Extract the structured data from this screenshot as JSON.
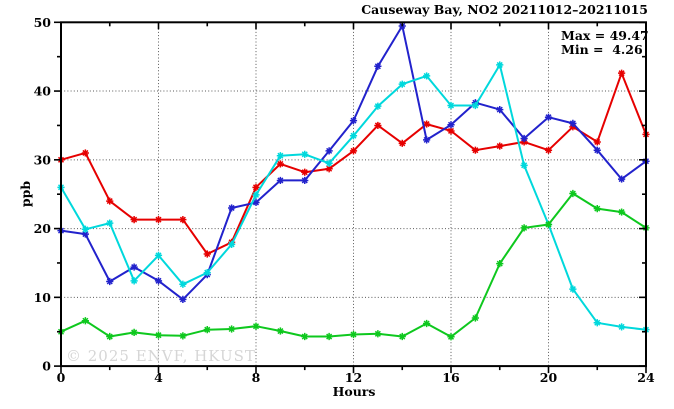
{
  "chart_data": {
    "type": "line",
    "title": "Causeway Bay, NO2 20211012–20211015",
    "xlabel": "Hours",
    "ylabel": "ppb",
    "xlim": [
      0,
      24
    ],
    "ylim": [
      0,
      50
    ],
    "x_major_ticks": [
      0,
      4,
      8,
      12,
      16,
      20,
      24
    ],
    "x_minor_ticks": [
      2,
      6,
      10,
      14,
      18,
      22
    ],
    "y_major_ticks": [
      0,
      10,
      20,
      30,
      40,
      50
    ],
    "y_minor_ticks": [
      5,
      15,
      25,
      35,
      45
    ],
    "x_gridlines": [
      4,
      8,
      12,
      16,
      20
    ],
    "y_gridlines": [
      10,
      20,
      30,
      40
    ],
    "grid_style": "dotted",
    "legend": "none",
    "marker": "asterisk",
    "annotation": {
      "max_label": "Max = 49.47",
      "min_label": "Min =  4.26",
      "max": 49.47,
      "min": 4.26
    },
    "watermark": "© 2025 ENVF, HKUST",
    "x": [
      0,
      1,
      2,
      3,
      4,
      5,
      6,
      7,
      8,
      9,
      10,
      11,
      12,
      13,
      14,
      15,
      16,
      17,
      18,
      19,
      20,
      21,
      22,
      23,
      24
    ],
    "series": [
      {
        "name": "red-series",
        "color": "#e60000",
        "values": [
          30.0,
          31.0,
          24.0,
          21.3,
          21.3,
          21.3,
          16.3,
          18.0,
          26.0,
          29.4,
          28.2,
          28.7,
          31.3,
          35.0,
          32.4,
          35.2,
          34.2,
          31.4,
          32.0,
          32.6,
          31.4,
          34.8,
          32.6,
          42.6,
          33.7
        ]
      },
      {
        "name": "blue-series",
        "color": "#2222cc",
        "values": [
          19.7,
          19.2,
          12.3,
          14.4,
          12.4,
          9.7,
          13.3,
          23.0,
          23.8,
          27.0,
          27.0,
          31.3,
          35.7,
          43.6,
          49.47,
          32.9,
          35.1,
          38.3,
          37.3,
          33.1,
          36.2,
          35.3,
          31.4,
          27.2,
          29.8
        ]
      },
      {
        "name": "cyan-series",
        "color": "#00d8dc",
        "values": [
          26.0,
          19.9,
          20.8,
          12.4,
          16.1,
          11.9,
          13.6,
          17.7,
          24.9,
          30.6,
          30.8,
          29.5,
          33.5,
          37.8,
          41.0,
          42.2,
          37.9,
          37.9,
          43.8,
          29.2,
          20.6,
          11.2,
          6.3,
          5.7,
          5.3
        ]
      },
      {
        "name": "green-series",
        "color": "#0ec81e",
        "values": [
          5.0,
          6.6,
          4.3,
          4.9,
          4.5,
          4.4,
          5.3,
          5.4,
          5.8,
          5.1,
          4.3,
          4.3,
          4.6,
          4.7,
          4.3,
          6.2,
          4.26,
          7.0,
          14.9,
          20.1,
          20.6,
          25.1,
          22.9,
          22.4,
          20.1
        ]
      }
    ]
  }
}
